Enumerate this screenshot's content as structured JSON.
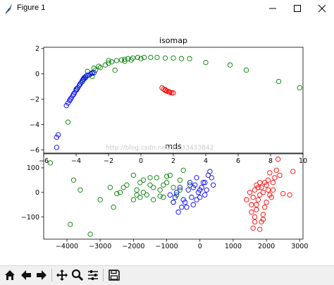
{
  "window": {
    "title": "Figure 1"
  },
  "toolbar": {
    "buttons": [
      {
        "name": "home-button",
        "icon": "home-icon"
      },
      {
        "name": "back-button",
        "icon": "arrow-left-icon"
      },
      {
        "name": "forward-button",
        "icon": "arrow-right-icon"
      },
      {
        "name": "pan-button",
        "icon": "move-icon"
      },
      {
        "name": "zoom-button",
        "icon": "magnifier-icon"
      },
      {
        "name": "subplots-button",
        "icon": "sliders-icon"
      },
      {
        "name": "save-button",
        "icon": "floppy-icon"
      }
    ]
  },
  "watermark": "http://blog.csdn.net/qq_33433842",
  "colors": {
    "red": "#ff0000",
    "green": "#008000",
    "blue": "#0000ff"
  },
  "chart_data": [
    {
      "type": "scatter",
      "title": "isomap",
      "xlim": [
        -6,
        10
      ],
      "ylim": [
        -6.3,
        2.1
      ],
      "xticks": [
        -6,
        -4,
        -2,
        0,
        2,
        4,
        6,
        8,
        10
      ],
      "yticks": [
        -6,
        -4,
        -2,
        0,
        2
      ],
      "series": [
        {
          "color": "#ff0000",
          "points": [
            [
              1.3,
              -1.1
            ],
            [
              1.4,
              -1.2
            ],
            [
              1.5,
              -1.3
            ],
            [
              1.6,
              -1.35
            ],
            [
              1.7,
              -1.4
            ],
            [
              1.8,
              -1.45
            ],
            [
              1.9,
              -1.5
            ],
            [
              2.0,
              -1.5
            ],
            [
              1.5,
              -1.25
            ],
            [
              1.75,
              -1.42
            ]
          ]
        },
        {
          "color": "#008000",
          "points": [
            [
              -4.5,
              -3.8
            ],
            [
              -4.0,
              -1.2
            ],
            [
              -3.8,
              -0.9
            ],
            [
              -3.6,
              -0.6
            ],
            [
              -3.4,
              -0.3
            ],
            [
              -3.2,
              -0.1
            ],
            [
              -3.0,
              0.1
            ],
            [
              -2.8,
              0.3
            ],
            [
              -2.5,
              0.5
            ],
            [
              -2.2,
              0.7
            ],
            [
              -2.0,
              0.85
            ],
            [
              -1.8,
              0.95
            ],
            [
              -1.5,
              1.05
            ],
            [
              -1.2,
              1.1
            ],
            [
              -1.0,
              1.15
            ],
            [
              -0.8,
              1.2
            ],
            [
              -0.5,
              1.25
            ],
            [
              -0.2,
              1.3
            ],
            [
              0.2,
              1.3
            ],
            [
              0.6,
              1.3
            ],
            [
              1.0,
              1.3
            ],
            [
              1.5,
              1.25
            ],
            [
              2.0,
              1.25
            ],
            [
              2.5,
              1.2
            ],
            [
              3.0,
              1.2
            ],
            [
              4.0,
              0.9
            ],
            [
              5.5,
              0.7
            ],
            [
              6.5,
              0.3
            ],
            [
              8.5,
              -0.6
            ],
            [
              9.8,
              -1.1
            ],
            [
              -3.3,
              0.2
            ],
            [
              -2.9,
              0.45
            ],
            [
              -2.6,
              0.6
            ],
            [
              -1.6,
              0.3
            ],
            [
              -1.0,
              1.0
            ],
            [
              -2.0,
              1.05
            ],
            [
              -3.0,
              -0.2
            ],
            [
              -3.5,
              -0.4
            ],
            [
              0.0,
              1.2
            ],
            [
              -0.6,
              1.1
            ]
          ]
        },
        {
          "color": "#0000ff",
          "points": [
            [
              -5.2,
              -5.8
            ],
            [
              -5.2,
              -5.0
            ],
            [
              -5.1,
              -4.8
            ],
            [
              -4.6,
              -2.5
            ],
            [
              -4.5,
              -2.3
            ],
            [
              -4.4,
              -2.1
            ],
            [
              -4.3,
              -1.9
            ],
            [
              -4.2,
              -1.7
            ],
            [
              -4.1,
              -1.5
            ],
            [
              -4.0,
              -1.3
            ],
            [
              -3.9,
              -1.1
            ],
            [
              -3.8,
              -0.9
            ],
            [
              -3.7,
              -0.7
            ],
            [
              -3.6,
              -0.5
            ],
            [
              -3.5,
              -0.3
            ],
            [
              -3.4,
              -0.2
            ],
            [
              -3.3,
              -0.1
            ],
            [
              -3.1,
              0.0
            ],
            [
              -3.0,
              0.05
            ],
            [
              -2.9,
              0.1
            ],
            [
              -4.35,
              -2.0
            ],
            [
              -4.15,
              -1.6
            ],
            [
              -3.95,
              -1.2
            ],
            [
              -3.75,
              -0.8
            ],
            [
              -3.55,
              -0.4
            ]
          ]
        }
      ]
    },
    {
      "type": "scatter",
      "title": "mds",
      "xlim": [
        -4700,
        3100
      ],
      "ylim": [
        -190,
        160
      ],
      "xticks": [
        -4000,
        -3000,
        -2000,
        -1000,
        0,
        1000,
        2000,
        3000
      ],
      "yticks": [
        -100,
        0,
        100
      ],
      "series": [
        {
          "color": "#ff0000",
          "points": [
            [
              1400,
              -30
            ],
            [
              1500,
              0
            ],
            [
              1550,
              -80
            ],
            [
              1600,
              -145
            ],
            [
              1650,
              -100
            ],
            [
              1700,
              -50
            ],
            [
              1750,
              20
            ],
            [
              1800,
              40
            ],
            [
              1850,
              -120
            ],
            [
              1900,
              -90
            ],
            [
              1950,
              -60
            ],
            [
              2000,
              30
            ],
            [
              2050,
              50
            ],
            [
              2100,
              80
            ],
            [
              2150,
              -20
            ],
            [
              2200,
              10
            ],
            [
              2300,
              90
            ],
            [
              2350,
              135
            ],
            [
              2400,
              70
            ],
            [
              2500,
              -5
            ],
            [
              2700,
              -10
            ],
            [
              2800,
              85
            ],
            [
              1600,
              -20
            ],
            [
              1650,
              10
            ],
            [
              1700,
              -70
            ],
            [
              1750,
              -30
            ],
            [
              1800,
              -10
            ],
            [
              1850,
              20
            ],
            [
              1900,
              0
            ],
            [
              1950,
              40
            ],
            [
              2000,
              -40
            ],
            [
              2050,
              10
            ],
            [
              1550,
              -50
            ],
            [
              1700,
              30
            ],
            [
              2100,
              -10
            ],
            [
              1800,
              -150
            ],
            [
              1900,
              -110
            ],
            [
              2200,
              40
            ],
            [
              1650,
              -120
            ],
            [
              2250,
              60
            ]
          ]
        },
        {
          "color": "#008000",
          "points": [
            [
              -4500,
              120
            ],
            [
              -3800,
              50
            ],
            [
              -3600,
              10
            ],
            [
              -3300,
              -170
            ],
            [
              -3000,
              -30
            ],
            [
              -2700,
              20
            ],
            [
              -2600,
              -60
            ],
            [
              -2400,
              0
            ],
            [
              -2200,
              30
            ],
            [
              -2000,
              70
            ],
            [
              -1900,
              10
            ],
            [
              -1800,
              -20
            ],
            [
              -1700,
              50
            ],
            [
              -1600,
              -10
            ],
            [
              -1500,
              30
            ],
            [
              -1400,
              -30
            ],
            [
              -1300,
              60
            ],
            [
              -1200,
              10
            ],
            [
              -1100,
              -20
            ],
            [
              -1000,
              40
            ],
            [
              -900,
              70
            ],
            [
              -800,
              20
            ],
            [
              -700,
              -10
            ],
            [
              -600,
              50
            ],
            [
              -500,
              90
            ],
            [
              -300,
              30
            ],
            [
              -2500,
              -5
            ],
            [
              -2000,
              -30
            ],
            [
              -1800,
              40
            ],
            [
              -1400,
              20
            ],
            [
              -1200,
              -15
            ],
            [
              -1000,
              65
            ],
            [
              -3900,
              -130
            ],
            [
              -2300,
              20
            ],
            [
              -1700,
              0
            ],
            [
              -1500,
              60
            ],
            [
              -800,
              -40
            ],
            [
              -1100,
              30
            ],
            [
              -600,
              10
            ],
            [
              -1900,
              -10
            ]
          ]
        },
        {
          "color": "#0000ff",
          "points": [
            [
              -900,
              -10
            ],
            [
              -800,
              -40
            ],
            [
              -700,
              0
            ],
            [
              -600,
              20
            ],
            [
              -500,
              -30
            ],
            [
              -400,
              -60
            ],
            [
              -350,
              10
            ],
            [
              -300,
              40
            ],
            [
              -250,
              -20
            ],
            [
              -200,
              -50
            ],
            [
              -150,
              30
            ],
            [
              -100,
              60
            ],
            [
              -50,
              0
            ],
            [
              0,
              -20
            ],
            [
              50,
              20
            ],
            [
              100,
              40
            ],
            [
              150,
              -10
            ],
            [
              200,
              10
            ],
            [
              250,
              70
            ],
            [
              300,
              85
            ],
            [
              350,
              60
            ],
            [
              400,
              30
            ],
            [
              -450,
              -40
            ],
            [
              -550,
              -60
            ],
            [
              -650,
              -80
            ],
            [
              -100,
              -30
            ],
            [
              0,
              10
            ],
            [
              -200,
              20
            ],
            [
              150,
              40
            ],
            [
              -750,
              -20
            ]
          ]
        }
      ]
    }
  ]
}
